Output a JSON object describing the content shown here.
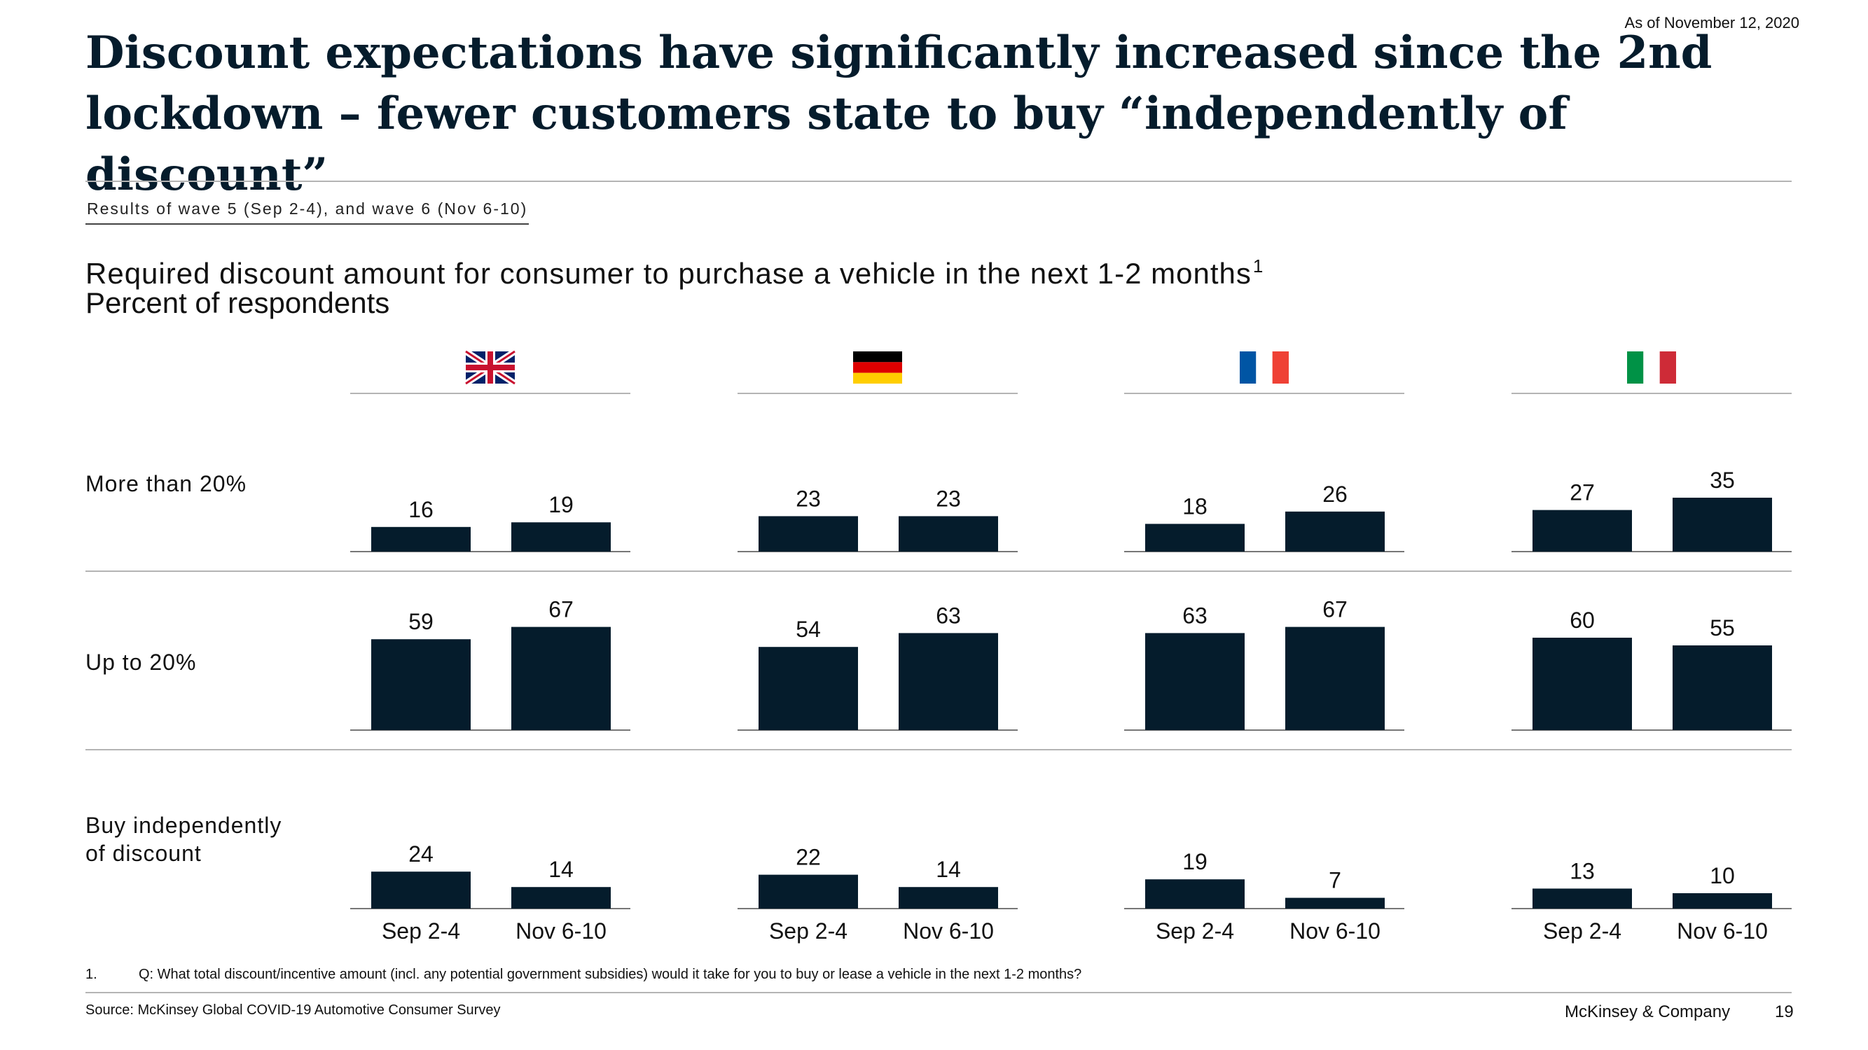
{
  "as_of": "As of November 12, 2020",
  "title": "Discount expectations have significantly increased since the 2nd lockdown – fewer customers state to buy “independently of discount”",
  "wave_note": "Results of wave 5 (Sep 2-4), and wave 6 (Nov 6-10)",
  "chart_title": "Required discount amount for consumer to purchase a vehicle in the next 1-2 months",
  "chart_title_footnote_ref": "1",
  "unit_label": "Percent of respondents",
  "colors": {
    "bar": "#051c2c",
    "text": "#111111",
    "rule": "#b4b4b4",
    "title": "#051c2c"
  },
  "chart_data": {
    "type": "bar",
    "categories": [
      "Sep 2-4",
      "Nov 6-10"
    ],
    "rows": [
      "More than 20%",
      "Up to 20%",
      "Buy independently of discount"
    ],
    "panels": [
      {
        "flag": "uk-flag-icon",
        "values": [
          [
            16,
            19
          ],
          [
            59,
            67
          ],
          [
            24,
            14
          ]
        ]
      },
      {
        "flag": "germany-flag-icon",
        "values": [
          [
            23,
            23
          ],
          [
            54,
            63
          ],
          [
            22,
            14
          ]
        ]
      },
      {
        "flag": "france-flag-icon",
        "values": [
          [
            18,
            26
          ],
          [
            63,
            67
          ],
          [
            19,
            7
          ]
        ]
      },
      {
        "flag": "italy-flag-icon",
        "values": [
          [
            27,
            35
          ],
          [
            60,
            55
          ],
          [
            13,
            10
          ]
        ]
      }
    ],
    "ylim": [
      0,
      70
    ]
  },
  "footnote_num": "1.",
  "footnote": "Q: What total discount/incentive amount (incl. any potential government subsidies) would it take for you to buy or lease a vehicle in the next 1-2 months?",
  "source": "Source: McKinsey Global COVID-19 Automotive Consumer Survey",
  "brand": "McKinsey & Company",
  "page_number": "19"
}
